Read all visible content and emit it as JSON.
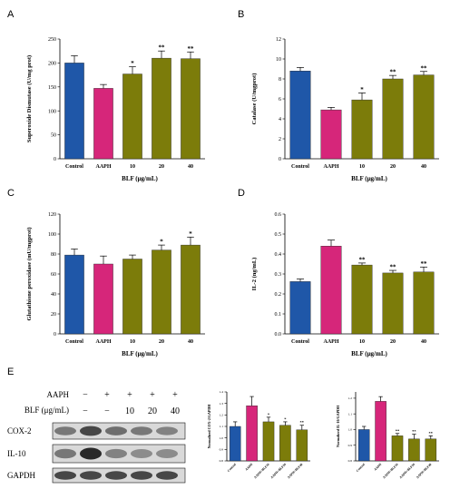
{
  "panels": {
    "A": "A",
    "B": "B",
    "C": "C",
    "D": "D",
    "E": "E"
  },
  "colors": {
    "control": "#1f57a8",
    "aaph": "#d6267a",
    "blf": "#7c7c0a"
  },
  "chart_data": [
    {
      "id": "A",
      "type": "bar",
      "categories": [
        "Control",
        "AAPH",
        "10",
        "20",
        "40"
      ],
      "values": [
        200,
        147,
        177,
        210,
        209
      ],
      "errors": [
        15,
        8,
        15,
        15,
        14
      ],
      "sig": [
        "",
        "",
        "*",
        "**",
        "**"
      ],
      "xlabel": "BLF (μg/mL)",
      "ylabel": "Superoxide Dismutase (U/mg prot)",
      "ylim": [
        0,
        250
      ],
      "yticks": [
        "0",
        "50",
        "100",
        "150",
        "200",
        "250"
      ]
    },
    {
      "id": "B",
      "type": "bar",
      "categories": [
        "Control",
        "AAPH",
        "10",
        "20",
        "40"
      ],
      "values": [
        8.8,
        4.9,
        5.9,
        8.0,
        8.4
      ],
      "errors": [
        0.35,
        0.25,
        0.7,
        0.35,
        0.35
      ],
      "sig": [
        "",
        "",
        "*",
        "**",
        "**"
      ],
      "xlabel": "BLF (μg/mL)",
      "ylabel": "Catalase (U/mgprot)",
      "ylim": [
        0,
        12
      ],
      "yticks": [
        "0",
        "2",
        "4",
        "6",
        "8",
        "10",
        "12"
      ]
    },
    {
      "id": "C",
      "type": "bar",
      "categories": [
        "Control",
        "AAPH",
        "10",
        "20",
        "40"
      ],
      "values": [
        79,
        70,
        75,
        84,
        89
      ],
      "errors": [
        6,
        8,
        4,
        5,
        8
      ],
      "sig": [
        "",
        "",
        "",
        "*",
        "*"
      ],
      "xlabel": "BLF (μg/mL)",
      "ylabel": "Glutathione peroxidase (mU/mgprot)",
      "ylim": [
        0,
        120
      ],
      "yticks": [
        "0",
        "20",
        "40",
        "60",
        "80",
        "100",
        "120"
      ]
    },
    {
      "id": "D",
      "type": "bar",
      "categories": [
        "Control",
        "AAPH",
        "10",
        "20",
        "40"
      ],
      "values": [
        0.262,
        0.44,
        0.345,
        0.305,
        0.31
      ],
      "errors": [
        0.013,
        0.03,
        0.01,
        0.013,
        0.025
      ],
      "sig": [
        "",
        "",
        "**",
        "**",
        "**"
      ],
      "xlabel": "BLF (μg/mL)",
      "ylabel": "IL-2 (ng/mL)",
      "ylim": [
        0,
        0.6
      ],
      "yticks": [
        "0.0",
        "0.1",
        "0.2",
        "0.3",
        "0.4",
        "0.5",
        "0.6"
      ]
    },
    {
      "id": "E2",
      "type": "bar",
      "categories": [
        "Control",
        "AAPH",
        "AAPH+BLF10",
        "AAPH+BLF20",
        "AAPH+BLF40"
      ],
      "values": [
        1.1,
        1.28,
        1.14,
        1.11,
        1.07
      ],
      "errors": [
        0.04,
        0.08,
        0.04,
        0.03,
        0.04
      ],
      "sig": [
        "",
        "",
        "*",
        "*",
        "**"
      ],
      "xlabel": "",
      "ylabel": "Normalized COX-2/GAPDH",
      "ylim": [
        0.8,
        1.4
      ],
      "yticks": [
        "0.8",
        "0.9",
        "1.0",
        "1.1",
        "1.2",
        "1.3",
        "1.4"
      ]
    },
    {
      "id": "E3",
      "type": "bar",
      "categories": [
        "Control",
        "AAPH",
        "AAPH+BLF10",
        "AAPH+BLF20",
        "AAPH+BLF40"
      ],
      "values": [
        1.0,
        1.18,
        0.96,
        0.94,
        0.94
      ],
      "errors": [
        0.02,
        0.03,
        0.015,
        0.03,
        0.02
      ],
      "sig": [
        "",
        "",
        "**",
        "**",
        "**"
      ],
      "xlabel": "",
      "ylabel": "Normalized IL-10/GAPDH",
      "ylim": [
        0.8,
        1.24
      ],
      "yticks": [
        "0.8",
        "0.9",
        "1.0",
        "1.1",
        "1.2"
      ]
    }
  ],
  "western_blot": {
    "row_aaph_label": "AAPH",
    "row_blf_label": "BLF (μg/mL)",
    "aaph_marks": [
      "−",
      "+",
      "+",
      "+",
      "+"
    ],
    "blf_marks": [
      "−",
      "−",
      "10",
      "20",
      "40"
    ],
    "bands": [
      "COX-2",
      "IL-10",
      "GAPDH"
    ],
    "band_intensity": {
      "COX-2": [
        0.55,
        0.8,
        0.6,
        0.55,
        0.5
      ],
      "IL-10": [
        0.55,
        0.95,
        0.5,
        0.45,
        0.45
      ],
      "GAPDH": [
        0.8,
        0.8,
        0.8,
        0.8,
        0.8
      ]
    }
  }
}
